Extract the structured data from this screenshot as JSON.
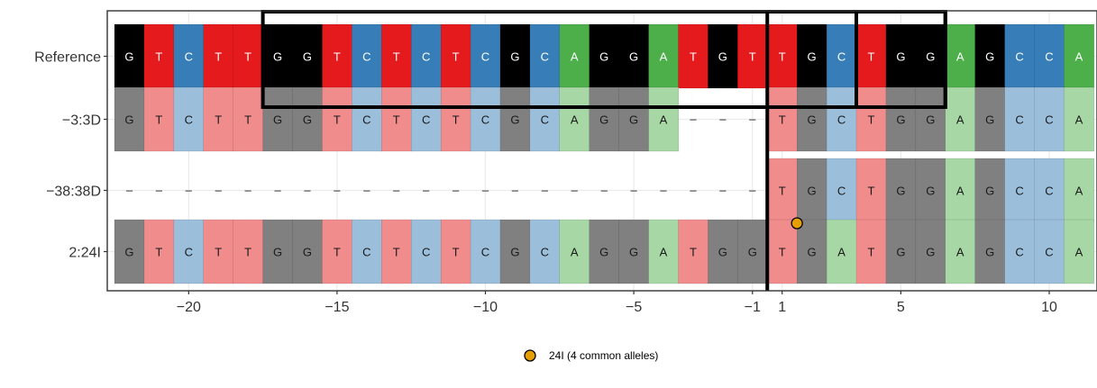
{
  "chart_data": {
    "type": "heatmap",
    "title": "",
    "xlabel": "",
    "ylabel": "",
    "x_range": [
      -22,
      11
    ],
    "x_ticks": [
      -20,
      -15,
      -10,
      -5,
      -1,
      1,
      5,
      10
    ],
    "x_tick_labels": [
      "−20",
      "−15",
      "−10",
      "−5",
      "−1",
      "1",
      "5",
      "10"
    ],
    "positions": [
      -22,
      -21,
      -20,
      -19,
      -18,
      -17,
      -16,
      -15,
      -14,
      -13,
      -12,
      -11,
      -10,
      -9,
      -8,
      -7,
      -6,
      -5,
      -4,
      -3,
      -2,
      -1,
      1,
      2,
      3,
      4,
      5,
      6,
      7,
      8,
      9,
      10,
      11
    ],
    "grid": true,
    "legend_position": "bottom",
    "colors": {
      "A": "#4DAF4A",
      "C": "#377EB8",
      "G": "#000000",
      "T": "#E41A1C",
      "A_light": "#A6D7A4",
      "C_light": "#9BBEDB",
      "G_light": "#808080",
      "T_light": "#F18C8D",
      "box": "#000000",
      "marker": "#E69F00"
    },
    "rows": [
      {
        "label": "Reference",
        "bases": [
          "G",
          "T",
          "C",
          "T",
          "T",
          "G",
          "G",
          "T",
          "C",
          "T",
          "C",
          "T",
          "C",
          "G",
          "C",
          "A",
          "G",
          "G",
          "A",
          "T",
          "G",
          "T",
          "T",
          "G",
          "C",
          "T",
          "G",
          "G",
          "A",
          "G",
          "C",
          "C",
          "A"
        ],
        "shade": "dark"
      },
      {
        "label": "−3:3D",
        "bases": [
          "G",
          "T",
          "C",
          "T",
          "T",
          "G",
          "G",
          "T",
          "C",
          "T",
          "C",
          "T",
          "C",
          "G",
          "C",
          "A",
          "G",
          "G",
          "A",
          "–",
          "–",
          "–",
          "T",
          "G",
          "C",
          "T",
          "G",
          "G",
          "A",
          "G",
          "C",
          "C",
          "A"
        ],
        "shade": "light"
      },
      {
        "label": "−38:38D",
        "bases": [
          "–",
          "–",
          "–",
          "–",
          "–",
          "–",
          "–",
          "–",
          "–",
          "–",
          "–",
          "–",
          "–",
          "–",
          "–",
          "–",
          "–",
          "–",
          "–",
          "–",
          "–",
          "–",
          "T",
          "G",
          "C",
          "T",
          "G",
          "G",
          "A",
          "G",
          "C",
          "C",
          "A"
        ],
        "shade": "light"
      },
      {
        "label": "2:24I",
        "bases": [
          "G",
          "T",
          "C",
          "T",
          "T",
          "G",
          "G",
          "T",
          "C",
          "T",
          "C",
          "T",
          "C",
          "G",
          "C",
          "A",
          "G",
          "G",
          "A",
          "T",
          "G",
          "G",
          "T",
          "G",
          "A",
          "T",
          "G",
          "G",
          "A",
          "G",
          "C",
          "C",
          "A"
        ],
        "shade": "light"
      }
    ],
    "boxes": [
      {
        "from": -17,
        "to": 6
      },
      {
        "from": 4,
        "to": 6
      }
    ],
    "cut_site": 0,
    "insertions": [
      {
        "row": "2:24I",
        "after_position": 1,
        "legend": "24I (4 common alleles)"
      }
    ],
    "legend": [
      {
        "label": "24I (4 common alleles)",
        "symbol": "circle"
      }
    ]
  }
}
